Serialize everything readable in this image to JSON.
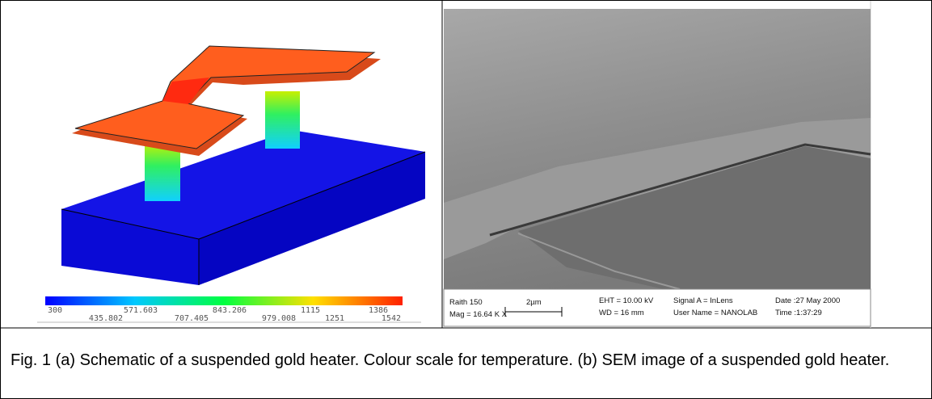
{
  "figure": {
    "colour_scale": {
      "labels_top": [
        "300",
        "571.603",
        "843.206",
        "1115",
        "1386"
      ],
      "labels_bottom": [
        "435.802",
        "707.405",
        "979.008",
        "1251",
        "1542"
      ]
    },
    "sem_info": {
      "instrument": "Raith 150",
      "mag": "Mag = 16.64 K X",
      "scale_bar": "2µm",
      "eht": "EHT = 10.00 kV",
      "wd": "WD =  16 mm",
      "signal": "Signal A = InLens",
      "user": "User Name = NANOLAB",
      "date": "Date :27 May 2000",
      "time": "Time :1:37:29"
    },
    "caption": "Fig. 1 (a) Schematic of a suspended gold heater. Colour scale for temperature. (b) SEM image of a suspended gold heater."
  }
}
